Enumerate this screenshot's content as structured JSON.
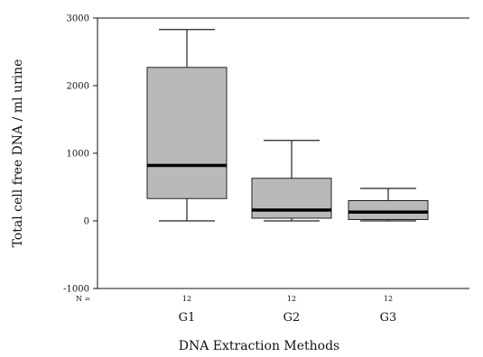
{
  "chart_data": {
    "type": "boxplot",
    "title": "",
    "xlabel": "DNA Extraction Methods",
    "ylabel": "Total cell free DNA / ml urine",
    "ylim": [
      -1000,
      3000
    ],
    "yticks": [
      "-1000",
      "0",
      "1000",
      "2000",
      "3000"
    ],
    "n_prefix": "N =",
    "categories": [
      "G1",
      "G2",
      "G3"
    ],
    "n_values": [
      "12",
      "12",
      "12"
    ],
    "boxes": [
      {
        "label": "G1",
        "min": 0,
        "q1": 330,
        "median": 820,
        "q3": 2270,
        "max": 2830
      },
      {
        "label": "G2",
        "min": 0,
        "q1": 40,
        "median": 160,
        "q3": 630,
        "max": 1190
      },
      {
        "label": "G3",
        "min": 0,
        "q1": 20,
        "median": 130,
        "q3": 300,
        "max": 480
      }
    ],
    "box_color": "#b9b9b9",
    "grid": false
  }
}
